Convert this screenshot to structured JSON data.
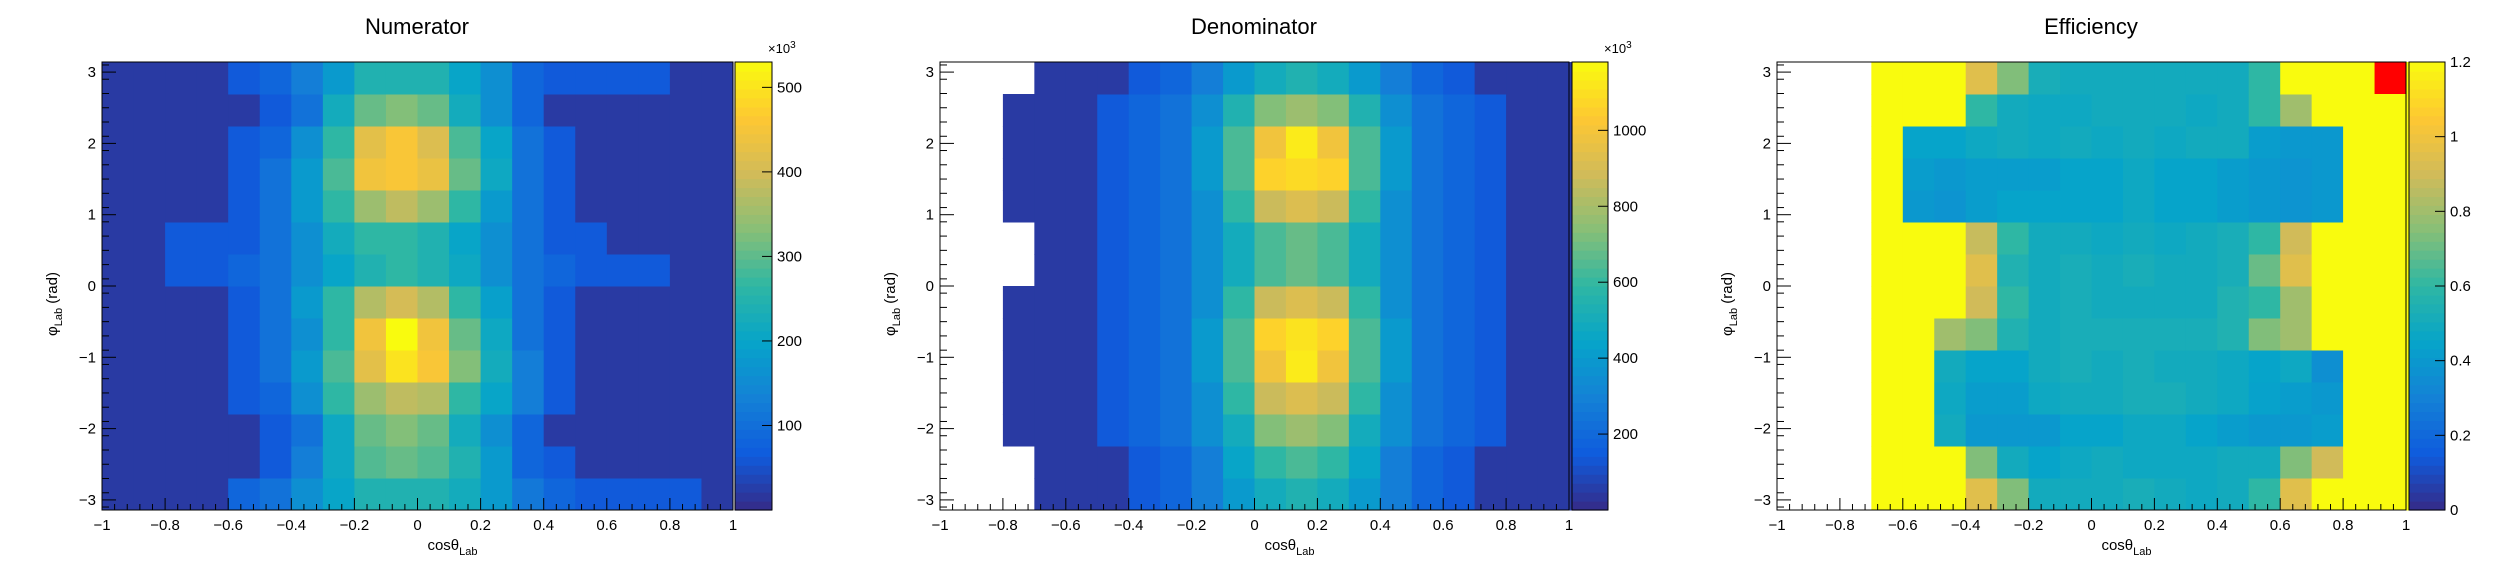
{
  "chart_data": [
    {
      "type": "heatmap",
      "title": "Numerator",
      "xlabel": "cosθ",
      "xlabel_sub": "Lab",
      "ylabel": "φ",
      "ylabel_sub": "Lab",
      "ylabel_unit": "(rad)",
      "xlim": [
        -1,
        1
      ],
      "ylim": [
        -3.14159,
        3.14159
      ],
      "x_ticks": [
        -1,
        -0.8,
        -0.6,
        -0.4,
        -0.2,
        0,
        0.2,
        0.4,
        0.6,
        0.8,
        1
      ],
      "x_tick_labels": [
        "−1",
        "−0.8",
        "−0.6",
        "−0.4",
        "−0.2",
        "0",
        "0.2",
        "0.4",
        "0.6",
        "0.8",
        "1"
      ],
      "y_ticks": [
        -3,
        -2,
        -1,
        0,
        1,
        2,
        3
      ],
      "y_tick_labels": [
        "−3",
        "−2",
        "−1",
        "0",
        "1",
        "2",
        "3"
      ],
      "colorbar": {
        "min": 0,
        "max": 530000,
        "multiplier": "×10",
        "multiplier_exp": "3",
        "ticks": [
          100000,
          200000,
          300000,
          400000,
          500000
        ],
        "tick_labels": [
          "100",
          "200",
          "300",
          "400",
          "500"
        ]
      },
      "nx": 20,
      "ny": 14,
      "x_range": [
        -1,
        1
      ],
      "y_range": [
        -3.14159,
        3.14159
      ],
      "x_start_bin": 0,
      "y_start_bin": 0,
      "z": [
        [
          0.04,
          0.04,
          0.04,
          0.04,
          0.16,
          0.2,
          0.3,
          0.38,
          0.46,
          0.46,
          0.46,
          0.42,
          0.34,
          0.22,
          0.16,
          0.12,
          0.12,
          0.12,
          0.12,
          0.04
        ],
        [
          0.04,
          0.04,
          0.04,
          0.04,
          0.04,
          0.12,
          0.24,
          0.4,
          0.55,
          0.58,
          0.55,
          0.46,
          0.34,
          0.16,
          0.12,
          0.04,
          0.04,
          0.04,
          0.04,
          0.04
        ],
        [
          0.04,
          0.04,
          0.04,
          0.04,
          0.04,
          0.12,
          0.2,
          0.4,
          0.58,
          0.62,
          0.58,
          0.42,
          0.3,
          0.16,
          0.04,
          0.04,
          0.04,
          0.04,
          0.04,
          0.04
        ],
        [
          0.04,
          0.04,
          0.04,
          0.04,
          0.12,
          0.16,
          0.3,
          0.5,
          0.66,
          0.72,
          0.7,
          0.5,
          0.38,
          0.24,
          0.12,
          0.04,
          0.04,
          0.04,
          0.04,
          0.04
        ],
        [
          0.04,
          0.04,
          0.04,
          0.04,
          0.12,
          0.2,
          0.34,
          0.54,
          0.8,
          0.94,
          0.86,
          0.62,
          0.42,
          0.24,
          0.12,
          0.04,
          0.04,
          0.04,
          0.04,
          0.04
        ],
        [
          0.04,
          0.04,
          0.04,
          0.04,
          0.12,
          0.2,
          0.3,
          0.5,
          0.84,
          1.0,
          0.84,
          0.58,
          0.4,
          0.2,
          0.12,
          0.04,
          0.04,
          0.04,
          0.04,
          0.04
        ],
        [
          0.04,
          0.04,
          0.04,
          0.04,
          0.12,
          0.2,
          0.34,
          0.5,
          0.7,
          0.76,
          0.7,
          0.5,
          0.36,
          0.2,
          0.12,
          0.04,
          0.04,
          0.04,
          0.04,
          0.04
        ],
        [
          0.04,
          0.04,
          0.12,
          0.12,
          0.16,
          0.2,
          0.3,
          0.38,
          0.46,
          0.5,
          0.46,
          0.4,
          0.3,
          0.2,
          0.16,
          0.12,
          0.12,
          0.12,
          0.04,
          0.04
        ],
        [
          0.04,
          0.04,
          0.12,
          0.12,
          0.12,
          0.2,
          0.3,
          0.42,
          0.5,
          0.5,
          0.46,
          0.38,
          0.3,
          0.2,
          0.12,
          0.12,
          0.04,
          0.04,
          0.04,
          0.04
        ],
        [
          0.04,
          0.04,
          0.04,
          0.04,
          0.12,
          0.2,
          0.34,
          0.5,
          0.66,
          0.72,
          0.66,
          0.5,
          0.34,
          0.2,
          0.12,
          0.04,
          0.04,
          0.04,
          0.04,
          0.04
        ],
        [
          0.04,
          0.04,
          0.04,
          0.04,
          0.12,
          0.2,
          0.34,
          0.54,
          0.84,
          0.86,
          0.82,
          0.58,
          0.4,
          0.2,
          0.12,
          0.04,
          0.04,
          0.04,
          0.04,
          0.04
        ],
        [
          0.04,
          0.04,
          0.04,
          0.04,
          0.12,
          0.16,
          0.3,
          0.5,
          0.8,
          0.86,
          0.78,
          0.54,
          0.38,
          0.2,
          0.12,
          0.04,
          0.04,
          0.04,
          0.04,
          0.04
        ],
        [
          0.04,
          0.04,
          0.04,
          0.04,
          0.04,
          0.12,
          0.2,
          0.42,
          0.58,
          0.62,
          0.58,
          0.42,
          0.3,
          0.16,
          0.04,
          0.04,
          0.04,
          0.04,
          0.04,
          0.04
        ],
        [
          0.04,
          0.04,
          0.04,
          0.04,
          0.12,
          0.16,
          0.24,
          0.34,
          0.46,
          0.46,
          0.46,
          0.38,
          0.3,
          0.16,
          0.12,
          0.12,
          0.12,
          0.12,
          0.04,
          0.04
        ]
      ]
    },
    {
      "type": "heatmap",
      "title": "Denominator",
      "xlabel": "cosθ",
      "xlabel_sub": "Lab",
      "ylabel": "φ",
      "ylabel_sub": "Lab",
      "ylabel_unit": "(rad)",
      "xlim": [
        -1,
        1
      ],
      "ylim": [
        -3.14159,
        3.14159
      ],
      "x_ticks": [
        -1,
        -0.8,
        -0.6,
        -0.4,
        -0.2,
        0,
        0.2,
        0.4,
        0.6,
        0.8,
        1
      ],
      "x_tick_labels": [
        "−1",
        "−0.8",
        "−0.6",
        "−0.4",
        "−0.2",
        "0",
        "0.2",
        "0.4",
        "0.6",
        "0.8",
        "1"
      ],
      "y_ticks": [
        -3,
        -2,
        -1,
        0,
        1,
        2,
        3
      ],
      "y_tick_labels": [
        "−3",
        "−2",
        "−1",
        "0",
        "1",
        "2",
        "3"
      ],
      "colorbar": {
        "min": 0,
        "max": 1180000,
        "multiplier": "×10",
        "multiplier_exp": "3",
        "ticks": [
          200000,
          400000,
          600000,
          800000,
          1000000
        ],
        "tick_labels": [
          "200",
          "400",
          "600",
          "800",
          "1000"
        ]
      },
      "nx": 19,
      "ny": 14,
      "x_range": [
        -0.9,
        1
      ],
      "y_range": [
        -3.14159,
        3.14159
      ],
      "x_start_bin": 2,
      "y_start_bin": 0,
      "z": [
        [
          null,
          0.04,
          0.04,
          0.04,
          0.12,
          0.16,
          0.24,
          0.34,
          0.42,
          0.46,
          0.42,
          0.34,
          0.24,
          0.16,
          0.12,
          0.04,
          0.04,
          0.04,
          0.04
        ],
        [
          null,
          0.04,
          0.04,
          0.04,
          0.12,
          0.16,
          0.24,
          0.38,
          0.5,
          0.54,
          0.5,
          0.38,
          0.24,
          0.16,
          0.12,
          0.04,
          0.04,
          0.04,
          0.04
        ],
        [
          0.04,
          0.04,
          0.04,
          0.12,
          0.16,
          0.2,
          0.3,
          0.42,
          0.62,
          0.66,
          0.62,
          0.42,
          0.3,
          0.2,
          0.16,
          0.12,
          0.04,
          0.04,
          0.04
        ],
        [
          0.04,
          0.04,
          0.04,
          0.12,
          0.16,
          0.2,
          0.3,
          0.5,
          0.74,
          0.78,
          0.74,
          0.5,
          0.3,
          0.2,
          0.16,
          0.12,
          0.04,
          0.04,
          0.04
        ],
        [
          0.04,
          0.04,
          0.04,
          0.12,
          0.16,
          0.2,
          0.34,
          0.54,
          0.84,
          0.96,
          0.84,
          0.54,
          0.34,
          0.2,
          0.16,
          0.12,
          0.04,
          0.04,
          0.04
        ],
        [
          0.04,
          0.04,
          0.04,
          0.12,
          0.16,
          0.2,
          0.34,
          0.54,
          0.9,
          0.94,
          0.9,
          0.54,
          0.34,
          0.2,
          0.16,
          0.12,
          0.04,
          0.04,
          0.04
        ],
        [
          0.04,
          0.04,
          0.04,
          0.12,
          0.16,
          0.2,
          0.3,
          0.5,
          0.74,
          0.78,
          0.74,
          0.5,
          0.3,
          0.2,
          0.16,
          0.12,
          0.04,
          0.04,
          0.04
        ],
        [
          null,
          0.04,
          0.04,
          0.12,
          0.16,
          0.2,
          0.3,
          0.42,
          0.54,
          0.58,
          0.54,
          0.42,
          0.3,
          0.2,
          0.16,
          0.12,
          0.04,
          0.04,
          0.04
        ],
        [
          null,
          0.04,
          0.04,
          0.12,
          0.16,
          0.2,
          0.3,
          0.42,
          0.54,
          0.58,
          0.54,
          0.42,
          0.3,
          0.2,
          0.16,
          0.12,
          0.04,
          0.04,
          0.04
        ],
        [
          0.04,
          0.04,
          0.04,
          0.12,
          0.16,
          0.2,
          0.3,
          0.5,
          0.74,
          0.78,
          0.74,
          0.5,
          0.3,
          0.2,
          0.16,
          0.12,
          0.04,
          0.04,
          0.04
        ],
        [
          0.04,
          0.04,
          0.04,
          0.12,
          0.16,
          0.2,
          0.34,
          0.54,
          0.9,
          0.92,
          0.9,
          0.54,
          0.34,
          0.2,
          0.16,
          0.12,
          0.04,
          0.04,
          0.04
        ],
        [
          0.04,
          0.04,
          0.04,
          0.12,
          0.16,
          0.2,
          0.34,
          0.54,
          0.84,
          0.96,
          0.84,
          0.54,
          0.34,
          0.2,
          0.16,
          0.12,
          0.04,
          0.04,
          0.04
        ],
        [
          0.04,
          0.04,
          0.04,
          0.12,
          0.16,
          0.2,
          0.3,
          0.46,
          0.62,
          0.66,
          0.62,
          0.46,
          0.3,
          0.2,
          0.16,
          0.12,
          0.04,
          0.04,
          0.04
        ],
        [
          null,
          0.04,
          0.04,
          0.04,
          0.12,
          0.16,
          0.24,
          0.34,
          0.42,
          0.46,
          0.42,
          0.34,
          0.24,
          0.16,
          0.12,
          0.04,
          0.04,
          0.04,
          0.04
        ]
      ]
    },
    {
      "type": "heatmap",
      "title": "Efficiency",
      "xlabel": "cosθ",
      "xlabel_sub": "Lab",
      "ylabel": "φ",
      "ylabel_sub": "Lab",
      "ylabel_unit": "(rad)",
      "xlim": [
        -1,
        1
      ],
      "ylim": [
        -3.14159,
        3.14159
      ],
      "x_ticks": [
        -1,
        -0.8,
        -0.6,
        -0.4,
        -0.2,
        0,
        0.2,
        0.4,
        0.6,
        0.8,
        1
      ],
      "x_tick_labels": [
        "−1",
        "−0.8",
        "−0.6",
        "−0.4",
        "−0.2",
        "0",
        "0.2",
        "0.4",
        "0.6",
        "0.8",
        "1"
      ],
      "y_ticks": [
        -3,
        -2,
        -1,
        0,
        1,
        2,
        3
      ],
      "y_tick_labels": [
        "−3",
        "−2",
        "−1",
        "0",
        "1",
        "2",
        "3"
      ],
      "colorbar": {
        "min": 0,
        "max": 1.2,
        "multiplier": "",
        "multiplier_exp": "",
        "ticks": [
          0,
          0.2,
          0.4,
          0.6,
          0.8,
          1,
          1.2
        ],
        "tick_labels": [
          "0",
          "0.2",
          "0.4",
          "0.6",
          "0.8",
          "1",
          "1.2"
        ]
      },
      "nx": 18,
      "ny": 14,
      "x_range": [
        -0.8,
        1
      ],
      "y_range": [
        -3.14159,
        3.14159
      ],
      "x_start_bin": 3,
      "y_start_bin": 0,
      "z": [
        [
          1.2,
          1.2,
          1.2,
          0.95,
          0.74,
          0.5,
          0.5,
          0.5,
          0.52,
          0.5,
          0.48,
          0.5,
          0.6,
          0.95,
          1.2,
          1.2,
          1.2,
          1.2
        ],
        [
          1.2,
          1.2,
          1.2,
          0.74,
          0.5,
          0.45,
          0.48,
          0.5,
          0.48,
          0.48,
          0.48,
          0.5,
          0.5,
          0.74,
          0.9,
          1.2,
          1.2,
          1.2
        ],
        [
          1.2,
          1.2,
          0.5,
          0.4,
          0.4,
          0.4,
          0.45,
          0.45,
          0.48,
          0.48,
          0.45,
          0.42,
          0.4,
          0.4,
          0.42,
          1.2,
          1.2,
          1.2
        ],
        [
          1.2,
          1.2,
          0.48,
          0.42,
          0.42,
          0.48,
          0.5,
          0.5,
          0.52,
          0.52,
          0.5,
          0.48,
          0.44,
          0.42,
          0.4,
          1.2,
          1.2,
          1.2
        ],
        [
          1.2,
          1.2,
          0.5,
          0.45,
          0.45,
          0.5,
          0.52,
          0.5,
          0.52,
          0.5,
          0.5,
          0.48,
          0.45,
          0.48,
          0.36,
          1.2,
          1.2,
          1.2
        ],
        [
          1.2,
          1.2,
          0.8,
          0.74,
          0.55,
          0.5,
          0.52,
          0.52,
          0.52,
          0.52,
          0.52,
          0.55,
          0.74,
          0.8,
          1.2,
          1.2,
          1.2,
          1.2
        ],
        [
          1.2,
          1.2,
          1.2,
          0.9,
          0.6,
          0.5,
          0.52,
          0.5,
          0.5,
          0.5,
          0.5,
          0.55,
          0.6,
          0.8,
          1.2,
          1.2,
          1.2,
          1.2
        ],
        [
          1.2,
          1.2,
          1.2,
          0.95,
          0.55,
          0.5,
          0.52,
          0.5,
          0.52,
          0.5,
          0.5,
          0.52,
          0.7,
          0.95,
          1.2,
          1.2,
          1.2,
          1.2
        ],
        [
          1.2,
          1.2,
          1.2,
          0.88,
          0.6,
          0.5,
          0.5,
          0.48,
          0.5,
          0.48,
          0.5,
          0.52,
          0.6,
          0.9,
          1.2,
          1.2,
          1.2,
          1.2
        ],
        [
          1.2,
          0.4,
          0.38,
          0.42,
          0.45,
          0.45,
          0.45,
          0.45,
          0.48,
          0.45,
          0.45,
          0.42,
          0.4,
          0.38,
          0.4,
          1.2,
          1.2,
          1.2
        ],
        [
          1.2,
          0.42,
          0.4,
          0.42,
          0.42,
          0.42,
          0.45,
          0.45,
          0.48,
          0.45,
          0.45,
          0.42,
          0.4,
          0.38,
          0.4,
          1.2,
          1.2,
          1.2
        ],
        [
          1.2,
          0.45,
          0.45,
          0.48,
          0.5,
          0.48,
          0.5,
          0.48,
          0.5,
          0.48,
          0.5,
          0.5,
          0.42,
          0.4,
          0.4,
          1.2,
          1.2,
          1.2
        ],
        [
          1.2,
          1.2,
          1.2,
          0.6,
          0.5,
          0.48,
          0.48,
          0.5,
          0.5,
          0.5,
          0.48,
          0.5,
          0.6,
          0.8,
          1.2,
          1.2,
          1.2,
          1.2
        ],
        [
          1.2,
          1.2,
          1.2,
          0.95,
          0.74,
          0.52,
          0.5,
          0.5,
          0.5,
          0.5,
          0.5,
          0.5,
          0.6,
          1.2,
          1.2,
          1.2,
          1.2,
          1.2
        ]
      ],
      "highlight_cell": {
        "col": 19,
        "row": 13,
        "value": 1.2,
        "color": "#ff0000"
      }
    }
  ],
  "palette_colors": [
    "#352a87",
    "#0f5cdd",
    "#1481d6",
    "#06a4ca",
    "#2eb7a4",
    "#87bf77",
    "#d1bb59",
    "#fec832",
    "#f9fb0e"
  ]
}
